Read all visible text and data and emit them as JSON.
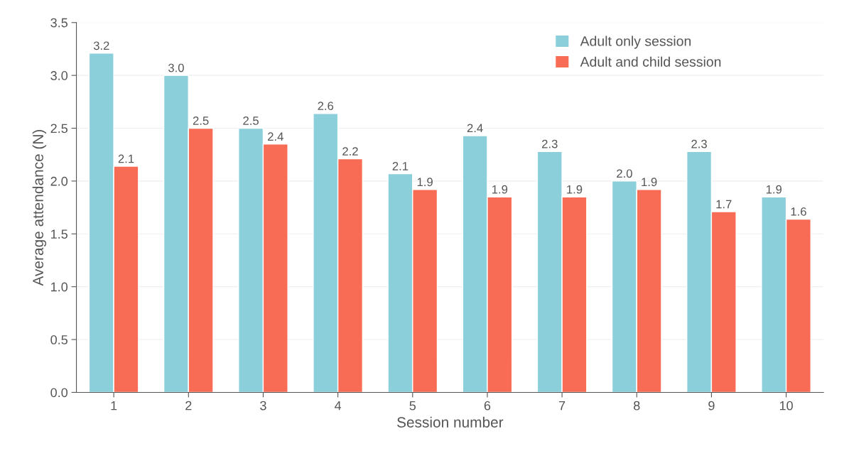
{
  "chart_data": {
    "type": "bar",
    "xlabel": "Session number",
    "ylabel": "Average attendance (N)",
    "categories": [
      "1",
      "2",
      "3",
      "4",
      "5",
      "6",
      "7",
      "8",
      "9",
      "10"
    ],
    "series": [
      {
        "name": "Adult only session",
        "color": "#8acfda",
        "values": [
          3.21,
          3.0,
          2.5,
          2.64,
          2.07,
          2.43,
          2.28,
          2.0,
          2.28,
          1.85
        ],
        "value_labels": [
          "3.2",
          "3.0",
          "2.5",
          "2.6",
          "2.1",
          "2.4",
          "2.3",
          "2.0",
          "2.3",
          "1.9"
        ]
      },
      {
        "name": "Adult and child session",
        "color": "#f86b54",
        "values": [
          2.14,
          2.5,
          2.35,
          2.21,
          1.92,
          1.85,
          1.85,
          1.92,
          1.71,
          1.64
        ],
        "value_labels": [
          "2.1",
          "2.5",
          "2.4",
          "2.2",
          "1.9",
          "1.9",
          "1.9",
          "1.9",
          "1.7",
          "1.6"
        ]
      }
    ],
    "ylim": [
      0,
      3.5
    ],
    "yticks": [
      {
        "value": 0,
        "label": "0.0"
      },
      {
        "value": 0.5,
        "label": "0.5"
      },
      {
        "value": 1,
        "label": "1.0"
      },
      {
        "value": 1.5,
        "label": "1.5"
      },
      {
        "value": 2,
        "label": "2.0"
      },
      {
        "value": 2.5,
        "label": "2.5"
      },
      {
        "value": 3,
        "label": "3.0"
      },
      {
        "value": 3.5,
        "label": "3.5"
      }
    ],
    "grid": "y",
    "legend": "top right"
  }
}
